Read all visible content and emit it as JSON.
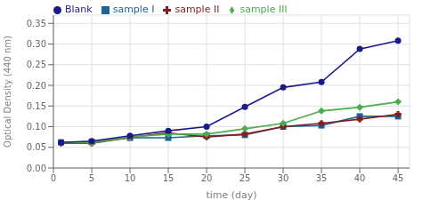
{
  "chart_data": {
    "type": "line",
    "x": [
      1,
      5,
      10,
      15,
      20,
      25,
      30,
      35,
      40,
      45
    ],
    "series": [
      {
        "name": "sample I",
        "color": "#1a6699",
        "marker": "square",
        "values": [
          0.062,
          0.063,
          0.073,
          0.073,
          0.078,
          0.08,
          0.1,
          0.103,
          0.125,
          0.125
        ]
      },
      {
        "name": "sample II",
        "color": "#8b1a1a",
        "marker": "plus",
        "values": [
          0.06,
          0.06,
          0.074,
          0.085,
          0.075,
          0.082,
          0.1,
          0.108,
          0.118,
          0.13
        ]
      },
      {
        "name": "sample III",
        "color": "#4aad4a",
        "marker": "diamond",
        "values": [
          0.061,
          0.061,
          0.075,
          0.082,
          0.082,
          0.095,
          0.108,
          0.138,
          0.147,
          0.16
        ]
      },
      {
        "name": "Blank",
        "color": "#1a1a8b",
        "marker": "circle",
        "values": [
          0.062,
          0.065,
          0.078,
          0.09,
          0.1,
          0.148,
          0.195,
          0.208,
          0.288,
          0.308
        ]
      }
    ],
    "x_label": "time (day)",
    "y_label": "Optical Density (440 nm)",
    "xlim": [
      0,
      46.5
    ],
    "ylim": [
      0,
      0.37
    ],
    "xticks": [
      0,
      5,
      10,
      15,
      20,
      25,
      30,
      35,
      40,
      45
    ],
    "yticks": [
      {
        "value": 0,
        "label": "0.00"
      },
      0.05,
      {
        "value": 0.1,
        "label": "0.10"
      },
      0.15,
      {
        "value": 0.2,
        "label": "0.20"
      },
      0.25,
      {
        "value": 0.3,
        "label": "0.30"
      },
      0.35
    ],
    "grid": true,
    "legend": "upper left"
  }
}
